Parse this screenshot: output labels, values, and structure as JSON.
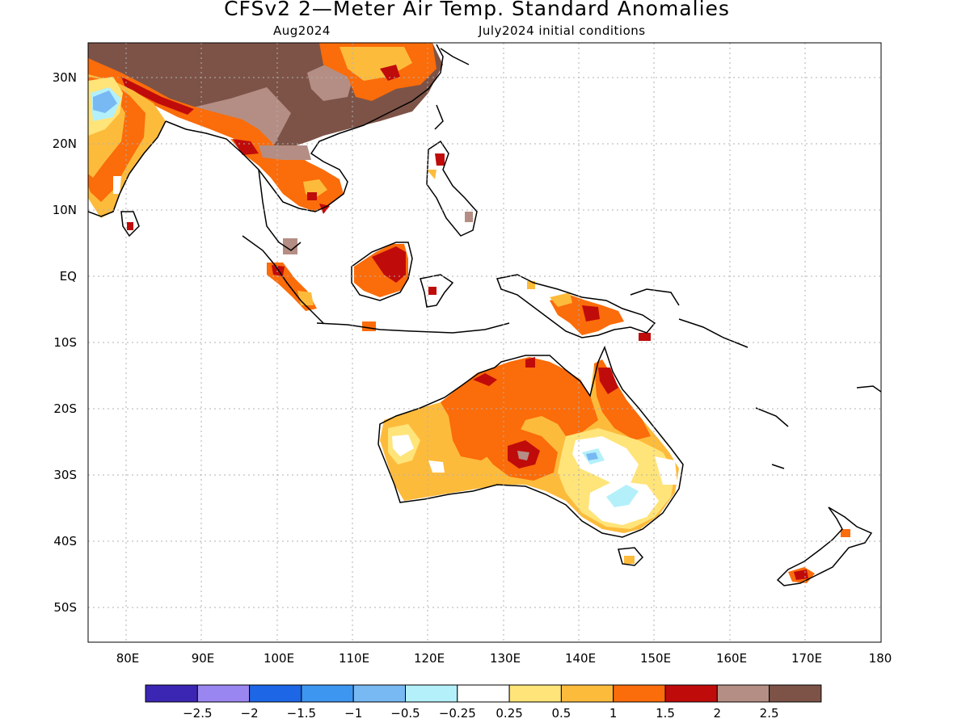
{
  "title": "CFSv2 2—Meter Air Temp. Standard Anomalies",
  "subtitle_left": "Aug2024",
  "subtitle_right": "July2024 initial conditions",
  "lat_labels": [
    "30N",
    "20N",
    "10N",
    "EQ",
    "10S",
    "20S",
    "30S",
    "40S",
    "50S"
  ],
  "lon_labels": [
    "80E",
    "90E",
    "100E",
    "110E",
    "120E",
    "130E",
    "140E",
    "150E",
    "160E",
    "170E",
    "180"
  ],
  "colorbar": {
    "colors": [
      "#3b26b4",
      "#9a86f0",
      "#1d66e6",
      "#3d96f0",
      "#78b9f4",
      "#b4f0fa",
      "#ffffff",
      "#ffe479",
      "#fdbb3c",
      "#fb6c0a",
      "#c00b0b",
      "#b48e84",
      "#7d5347"
    ],
    "labels": [
      "−2.5",
      "−2",
      "−1.5",
      "−1",
      "−0.5",
      "−0.25",
      "0.25",
      "0.5",
      "1",
      "1.5",
      "2",
      "2.5"
    ]
  }
}
